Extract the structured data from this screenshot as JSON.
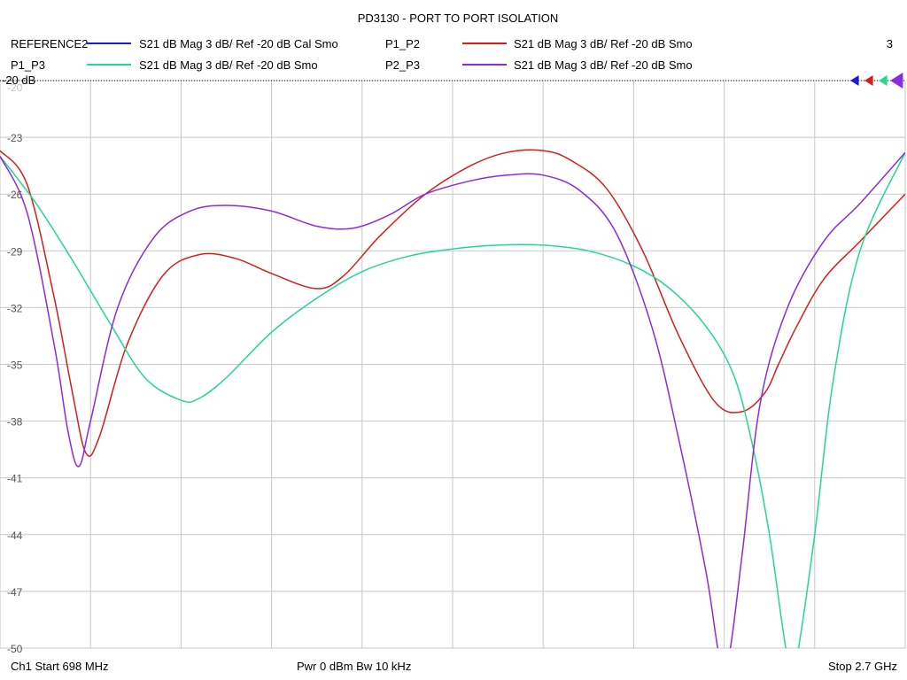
{
  "chart_data": {
    "type": "line",
    "title": "PD3130 - PORT TO PORT ISOLATION",
    "channel_number": "3",
    "ref_label": "-20 dB",
    "ylim": [
      -50,
      -20
    ],
    "xlim": [
      0,
      10
    ],
    "y_ticks": [
      "-20",
      "-23",
      "-26",
      "-29",
      "-32",
      "-35",
      "-38",
      "-41",
      "-44",
      "-47",
      "-50"
    ],
    "y_tick_values": [
      -20,
      -23,
      -26,
      -29,
      -32,
      -35,
      -38,
      -41,
      -44,
      -47,
      -50
    ],
    "grid": true,
    "footer": {
      "start": "Ch1  Start  698 MHz",
      "power": "Pwr  0 dBm  Bw  10 kHz",
      "stop": "Stop  2.7 GHz"
    },
    "series": [
      {
        "name": "REFERENCE2",
        "description": "S21  dB Mag  3 dB/ Ref -20 dB  Cal Smo",
        "color": "#1a1adc",
        "x": [],
        "y": []
      },
      {
        "name": "P1_P2",
        "description": "S21  dB Mag  3 dB/ Ref -20 dB  Smo",
        "color": "#d81c1c",
        "x": [
          0,
          0.3,
          0.6,
          0.8,
          0.95,
          1.1,
          1.4,
          1.8,
          2.2,
          2.6,
          3.0,
          3.5,
          3.8,
          4.2,
          4.7,
          5.2,
          5.6,
          6.0,
          6.3,
          6.7,
          7.1,
          7.5,
          7.9,
          8.2,
          8.45,
          8.6,
          8.8,
          9.1,
          9.5,
          10.0
        ],
        "y": [
          -23.7,
          -25.5,
          -31.5,
          -36.5,
          -39.7,
          -38.8,
          -34.0,
          -30.3,
          -29.2,
          -29.4,
          -30.2,
          -31.0,
          -30.3,
          -28.2,
          -26.0,
          -24.5,
          -23.8,
          -23.7,
          -24.2,
          -25.7,
          -29.0,
          -33.5,
          -37.0,
          -37.5,
          -36.5,
          -35.0,
          -33.0,
          -30.5,
          -28.5,
          -26.0
        ]
      },
      {
        "name": "P1_P3",
        "description": "S21  dB Mag  3 dB/ Ref -20 dB  Smo",
        "color": "#22d98c",
        "x": [
          0,
          0.4,
          0.8,
          1.2,
          1.6,
          2.0,
          2.2,
          2.5,
          3.0,
          3.5,
          4.0,
          4.5,
          5.0,
          5.5,
          6.0,
          6.5,
          7.0,
          7.4,
          7.8,
          8.1,
          8.3,
          8.5,
          8.7,
          8.8,
          9.0,
          9.2,
          9.5,
          10.0
        ],
        "y": [
          -24.0,
          -26.5,
          -29.5,
          -32.7,
          -35.7,
          -36.9,
          -36.8,
          -35.7,
          -33.3,
          -31.5,
          -30.1,
          -29.3,
          -28.9,
          -28.7,
          -28.7,
          -29.0,
          -29.8,
          -31.0,
          -33.0,
          -35.5,
          -39.0,
          -44.0,
          -50.5,
          -50.5,
          -44.0,
          -36.0,
          -29.0,
          -23.8
        ]
      },
      {
        "name": "P2_P3",
        "description": "S21  dB Mag  3 dB/ Ref -20 dB  Smo",
        "color": "#8a2be2",
        "x": [
          0,
          0.3,
          0.6,
          0.75,
          0.87,
          1.0,
          1.3,
          1.7,
          2.1,
          2.5,
          3.0,
          3.5,
          3.9,
          4.3,
          4.7,
          5.2,
          5.6,
          6.0,
          6.4,
          6.8,
          7.2,
          7.5,
          7.8,
          7.95,
          8.05,
          8.2,
          8.4,
          8.7,
          9.1,
          9.5,
          10.0
        ],
        "y": [
          -24.0,
          -27.0,
          -34.0,
          -38.5,
          -40.4,
          -38.0,
          -32.0,
          -28.3,
          -26.9,
          -26.6,
          -26.9,
          -27.7,
          -27.8,
          -27.1,
          -26.0,
          -25.3,
          -25.0,
          -25.0,
          -25.8,
          -28.0,
          -33.0,
          -39.0,
          -46.0,
          -50.5,
          -50.5,
          -45.0,
          -37.0,
          -32.0,
          -28.5,
          -26.5,
          -23.8
        ]
      }
    ]
  }
}
